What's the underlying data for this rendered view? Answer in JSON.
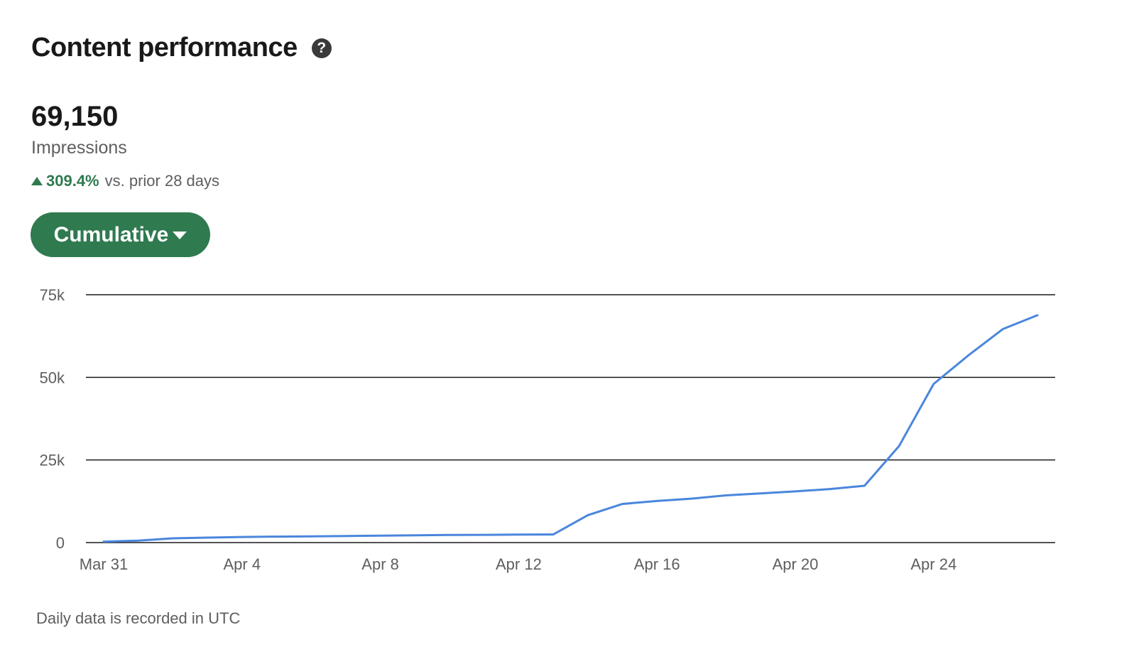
{
  "header": {
    "title": "Content performance",
    "help_icon": "question-circle-icon"
  },
  "metric": {
    "value": "69,150",
    "label": "Impressions",
    "change_pct": "309.4%",
    "change_text": "vs. prior 28 days",
    "trend": "up",
    "trend_color": "#2f7a4f"
  },
  "view_selector": {
    "label": "Cumulative",
    "icon": "caret-down-icon"
  },
  "footnote": "Daily data is recorded in UTC",
  "chart_data": {
    "type": "line",
    "title": "",
    "xlabel": "",
    "ylabel": "",
    "ylim": [
      0,
      75000
    ],
    "yticks": [
      0,
      25000,
      50000,
      75000
    ],
    "ytick_labels": [
      "0",
      "25k",
      "50k",
      "75k"
    ],
    "xtick_labels": [
      "Mar 31",
      "Apr 4",
      "Apr 8",
      "Apr 12",
      "Apr 16",
      "Apr 20",
      "Apr 24"
    ],
    "xtick_index": [
      0,
      4,
      8,
      12,
      16,
      20,
      24
    ],
    "grid": true,
    "line_color": "#4a86dc",
    "x": [
      "Mar 31",
      "Apr 1",
      "Apr 2",
      "Apr 3",
      "Apr 4",
      "Apr 5",
      "Apr 6",
      "Apr 7",
      "Apr 8",
      "Apr 9",
      "Apr 10",
      "Apr 11",
      "Apr 12",
      "Apr 13",
      "Apr 14",
      "Apr 15",
      "Apr 16",
      "Apr 17",
      "Apr 18",
      "Apr 19",
      "Apr 20",
      "Apr 21",
      "Apr 22",
      "Apr 23",
      "Apr 24",
      "Apr 25",
      "Apr 26",
      "Apr 27"
    ],
    "series": [
      {
        "values": [
          300,
          600,
          1300,
          1500,
          1700,
          1800,
          1900,
          2000,
          2100,
          2200,
          2300,
          2350,
          2400,
          2450,
          8300,
          11700,
          12600,
          13300,
          14300,
          14900,
          15500,
          16200,
          17200,
          29200,
          48000,
          56600,
          64600,
          68800
        ]
      }
    ]
  }
}
